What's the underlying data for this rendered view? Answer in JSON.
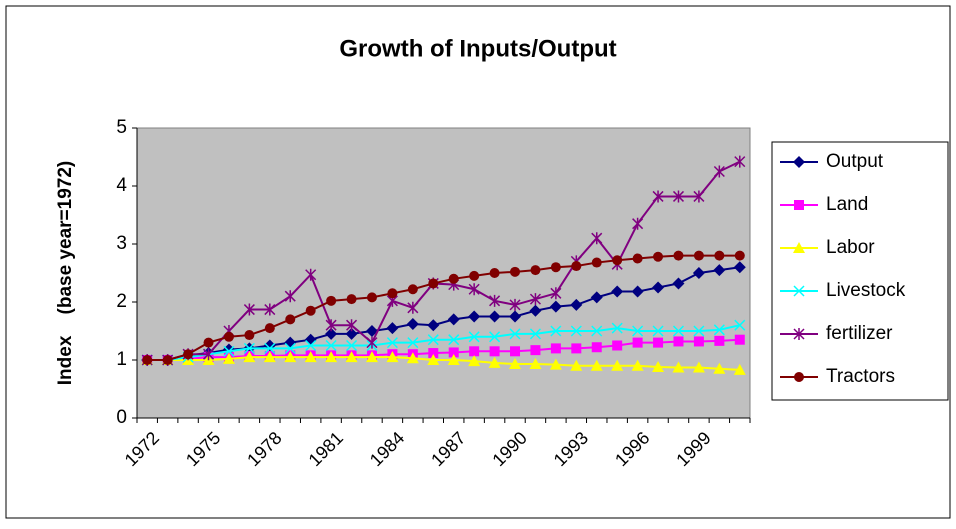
{
  "chart_data": {
    "type": "line",
    "title": "Growth of Inputs/Output",
    "y_label": "Index    (base year=1972)",
    "categories": [
      "1972",
      null,
      null,
      "1975",
      null,
      null,
      "1978",
      null,
      null,
      "1981",
      null,
      null,
      "1984",
      null,
      null,
      "1987",
      null,
      null,
      "1990",
      null,
      null,
      "1993",
      null,
      null,
      "1996",
      null,
      null,
      "1999",
      null,
      null
    ],
    "ylim": [
      0,
      5
    ],
    "yticks": [
      0,
      1,
      2,
      3,
      4,
      5
    ],
    "grid": false,
    "legend": "right",
    "series": [
      {
        "name": "Output",
        "color": "#000080",
        "marker": "diamond",
        "values": [
          1,
          1,
          1.08,
          1.12,
          1.18,
          1.2,
          1.25,
          1.3,
          1.35,
          1.45,
          1.45,
          1.5,
          1.55,
          1.62,
          1.6,
          1.7,
          1.75,
          1.75,
          1.75,
          1.85,
          1.92,
          1.95,
          2.08,
          2.18,
          2.18,
          2.25,
          2.32,
          2.5,
          2.55,
          2.6
        ]
      },
      {
        "name": "Land",
        "color": "#ff00ff",
        "marker": "square",
        "values": [
          1,
          1,
          1.02,
          1.05,
          1.05,
          1.07,
          1.07,
          1.08,
          1.08,
          1.08,
          1.08,
          1.08,
          1.1,
          1.1,
          1.12,
          1.13,
          1.15,
          1.15,
          1.15,
          1.17,
          1.2,
          1.2,
          1.22,
          1.25,
          1.3,
          1.3,
          1.32,
          1.32,
          1.33,
          1.35
        ]
      },
      {
        "name": "Labor",
        "color": "#ffff00",
        "marker": "triangle",
        "values": [
          1,
          1,
          1,
          1,
          1.02,
          1.05,
          1.05,
          1.05,
          1.05,
          1.05,
          1.05,
          1.05,
          1.05,
          1.03,
          1,
          1,
          0.98,
          0.95,
          0.93,
          0.93,
          0.92,
          0.9,
          0.9,
          0.9,
          0.9,
          0.88,
          0.87,
          0.87,
          0.85,
          0.83
        ]
      },
      {
        "name": "Livestock",
        "color": "#00ffff",
        "marker": "x",
        "values": [
          1,
          1,
          1.05,
          1.1,
          1.15,
          1.2,
          1.2,
          1.2,
          1.25,
          1.25,
          1.25,
          1.25,
          1.3,
          1.3,
          1.35,
          1.35,
          1.4,
          1.4,
          1.45,
          1.45,
          1.5,
          1.5,
          1.5,
          1.55,
          1.5,
          1.5,
          1.5,
          1.5,
          1.52,
          1.6
        ]
      },
      {
        "name": "fertilizer",
        "color": "#800080",
        "marker": "star",
        "values": [
          1,
          1,
          1.1,
          1.1,
          1.5,
          1.87,
          1.87,
          2.1,
          2.47,
          1.6,
          1.6,
          1.3,
          2.02,
          1.9,
          2.32,
          2.3,
          2.22,
          2.02,
          1.95,
          2.05,
          2.15,
          2.7,
          3.1,
          2.65,
          3.35,
          3.82,
          3.82,
          3.82,
          4.25,
          4.42
        ]
      },
      {
        "name": "Tractors",
        "color": "#800000",
        "marker": "circle",
        "values": [
          1,
          1,
          1.1,
          1.3,
          1.4,
          1.43,
          1.55,
          1.7,
          1.85,
          2.02,
          2.05,
          2.08,
          2.15,
          2.22,
          2.32,
          2.4,
          2.45,
          2.5,
          2.52,
          2.55,
          2.6,
          2.62,
          2.68,
          2.72,
          2.75,
          2.78,
          2.8,
          2.8,
          2.8,
          2.8
        ]
      }
    ]
  }
}
